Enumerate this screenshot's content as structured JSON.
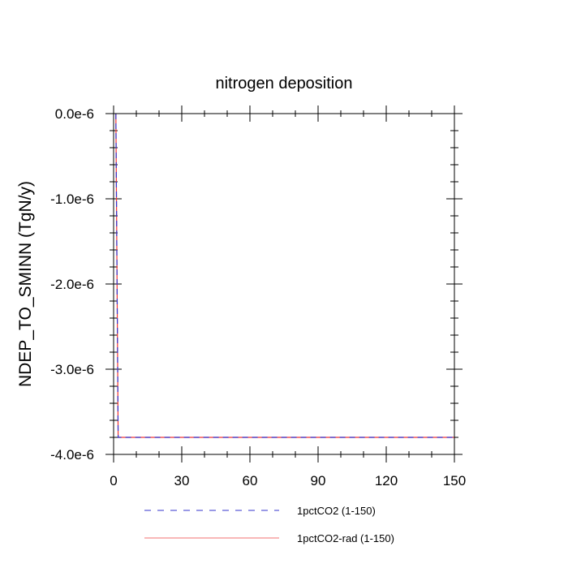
{
  "chart_data": {
    "type": "line",
    "title": "nitrogen deposition",
    "xlabel": "",
    "ylabel": "NDEP_TO_SMINN  (TgN/y)",
    "xlim": [
      0,
      150
    ],
    "ylim": [
      -4e-06,
      0.0
    ],
    "x_ticks": [
      0,
      30,
      60,
      90,
      120,
      150
    ],
    "x_tick_labels": [
      "0",
      "30",
      "60",
      "90",
      "120",
      "150"
    ],
    "y_ticks": [
      0.0,
      -1e-06,
      -2e-06,
      -3e-06,
      -4e-06
    ],
    "y_tick_labels": [
      "0.0e-6",
      "-1.0e-6",
      "-2.0e-6",
      "-3.0e-6",
      "-4.0e-6"
    ],
    "grid": false,
    "legend_position": "bottom",
    "series": [
      {
        "name": "1pctCO2 (1-150)",
        "color": "#3333cc",
        "dash": "dashed",
        "x": [
          1,
          2,
          3,
          150
        ],
        "y": [
          0.0,
          -3.8e-06,
          -3.8e-06,
          -3.8e-06
        ]
      },
      {
        "name": "1pctCO2-rad (1-150)",
        "color": "#ee3333",
        "dash": "solid",
        "x": [
          1,
          2,
          3,
          150
        ],
        "y": [
          0.0,
          -3.8e-06,
          -3.8e-06,
          -3.8e-06
        ]
      }
    ]
  }
}
